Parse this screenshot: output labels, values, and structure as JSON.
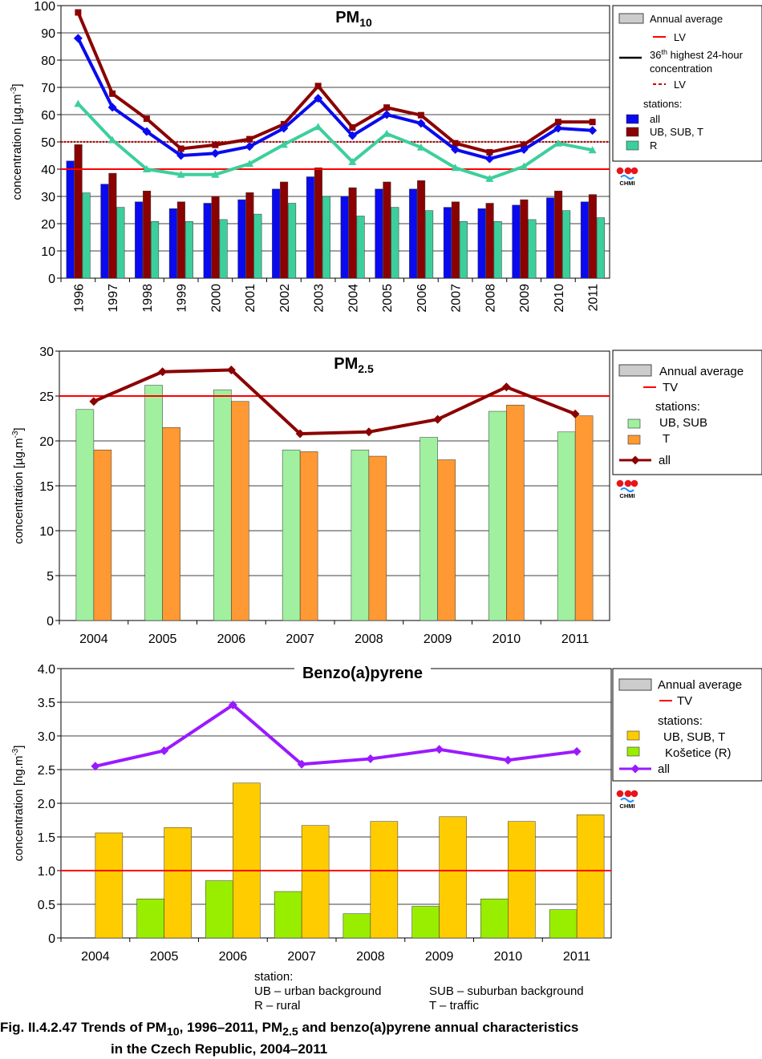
{
  "chart_data": [
    {
      "type": "bar",
      "title": "PM",
      "title_sub": "10",
      "ylabel": "concentration [µg.m",
      "ylabel_sup": "-3",
      "ylabel_end": "]",
      "ylim": [
        0,
        100
      ],
      "yticks": [
        "0",
        "10",
        "20",
        "30",
        "40",
        "50",
        "60",
        "70",
        "80",
        "90",
        "100"
      ],
      "categories": [
        "1996",
        "1997",
        "1998",
        "1999",
        "2000",
        "2001",
        "2002",
        "2003",
        "2004",
        "2005",
        "2006",
        "2007",
        "2008",
        "2009",
        "2010",
        "2011"
      ],
      "bar_series": [
        {
          "key": "all",
          "color": "#0a0af0",
          "values": [
            43,
            34.5,
            28,
            25.5,
            27.5,
            28.8,
            32.7,
            37.2,
            30,
            32.7,
            32.7,
            26,
            25.5,
            26.8,
            29.5,
            28
          ]
        },
        {
          "key": "ub",
          "color": "#8b0000",
          "values": [
            49,
            38.5,
            32,
            28,
            30,
            31.4,
            35.3,
            40.5,
            33.2,
            35.3,
            35.8,
            28,
            27.5,
            28.8,
            32,
            30.7
          ]
        },
        {
          "key": "r",
          "color": "#3ccf9c",
          "values": [
            31.3,
            26,
            20.8,
            20.8,
            21.5,
            23.5,
            27.5,
            30,
            22.8,
            26,
            24.8,
            20.8,
            20.8,
            21.5,
            24.8,
            22.2
          ]
        }
      ],
      "line_series": [
        {
          "key": "ub",
          "color": "#8b0000",
          "marker": "square",
          "values": [
            97.5,
            67.7,
            58.5,
            47.5,
            48.9,
            51,
            56.5,
            70.5,
            55.3,
            62.6,
            59.8,
            49.5,
            46.2,
            49,
            57.3,
            57.3
          ]
        },
        {
          "key": "all",
          "color": "#0a0af0",
          "marker": "diamond",
          "values": [
            88,
            62.7,
            53.8,
            45,
            45.8,
            48.3,
            55,
            66,
            52.3,
            60,
            56.8,
            47.2,
            43.8,
            47.2,
            55,
            54.2
          ]
        },
        {
          "key": "r",
          "color": "#3ccf9c",
          "marker": "triangle",
          "values": [
            64,
            50.7,
            40,
            38,
            38,
            42,
            49,
            55.5,
            42.7,
            53,
            48,
            40.5,
            36.5,
            41,
            49.5,
            47
          ]
        }
      ],
      "limit_lines": [
        {
          "value": 40,
          "color": "#ff0000",
          "style": "solid"
        },
        {
          "value": 50,
          "color": "#cc0000",
          "style": "dotted"
        }
      ],
      "grid": true,
      "legend": {
        "position": "right",
        "annual": "Annual average",
        "lv": "LV",
        "pct_pre": "36",
        "pct_sup": "th",
        "pct_post": " highest 24-hour",
        "pct_line2": "concentration",
        "lv2": "LV",
        "stations": "stations:",
        "all": "all",
        "ub": "UB, SUB, T",
        "r": "R"
      },
      "logo": "CHMI"
    },
    {
      "type": "bar",
      "title": "PM",
      "title_sub": "2.5",
      "ylabel": "concentration [µg.m",
      "ylabel_sup": "-3",
      "ylabel_end": "]",
      "ylim": [
        0,
        30
      ],
      "yticks": [
        "0",
        "5",
        "10",
        "15",
        "20",
        "25",
        "30"
      ],
      "categories": [
        "2004",
        "2005",
        "2006",
        "2007",
        "2008",
        "2009",
        "2010",
        "2011"
      ],
      "bar_series": [
        {
          "key": "ub",
          "color": "#a0f0a0",
          "values": [
            23.5,
            26.2,
            25.7,
            19,
            19,
            20.4,
            23.3,
            21
          ]
        },
        {
          "key": "t",
          "color": "#ff9933",
          "values": [
            19,
            21.5,
            24.4,
            18.8,
            18.3,
            17.9,
            24,
            22.8
          ]
        }
      ],
      "line_series": [
        {
          "key": "all",
          "color": "#8b0000",
          "marker": "diamond",
          "values": [
            24.4,
            27.7,
            27.9,
            20.8,
            21,
            22.4,
            26,
            23
          ]
        }
      ],
      "limit_lines": [
        {
          "value": 25,
          "color": "#ff0000",
          "style": "solid"
        }
      ],
      "grid": true,
      "legend": {
        "position": "right",
        "annual": "Annual average",
        "tv": "TV",
        "stations": "stations:",
        "ub": "UB, SUB",
        "t": "T",
        "all": "all"
      },
      "logo": "CHMI"
    },
    {
      "type": "bar",
      "title": "Benzo(a)pyrene",
      "ylabel": "concentration [ng.m",
      "ylabel_sup": "-3",
      "ylabel_end": "]",
      "ylim": [
        0,
        4
      ],
      "yticks": [
        "0",
        "0.5",
        "1.0",
        "1.5",
        "2.0",
        "2.5",
        "3.0",
        "3.5",
        "4.0"
      ],
      "categories": [
        "2004",
        "2005",
        "2006",
        "2007",
        "2008",
        "2009",
        "2010",
        "2011"
      ],
      "bar_series": [
        {
          "key": "r",
          "color": "#99ee00",
          "values": [
            null,
            0.58,
            0.85,
            0.69,
            0.36,
            0.47,
            0.58,
            0.42
          ]
        },
        {
          "key": "ub",
          "color": "#ffcc00",
          "values": [
            1.56,
            1.64,
            2.3,
            1.67,
            1.73,
            1.8,
            1.73,
            1.83
          ]
        }
      ],
      "line_series": [
        {
          "key": "all",
          "color": "#9a1aff",
          "marker": "diamond",
          "values": [
            2.55,
            2.78,
            3.46,
            2.58,
            2.66,
            2.8,
            2.64,
            2.77
          ]
        }
      ],
      "limit_lines": [
        {
          "value": 1.0,
          "color": "#ff0000",
          "style": "solid"
        }
      ],
      "grid": true,
      "legend": {
        "position": "right",
        "annual": "Annual average",
        "tv": "TV",
        "stations": "stations:",
        "ub": "UB, SUB, T",
        "r": "Košetice (R)",
        "all": "all"
      },
      "logo": "CHMI"
    }
  ],
  "station_notes": {
    "heading": "station:",
    "ub": "UB – urban background",
    "sub": "SUB – suburban background",
    "r": "R – rural",
    "t": "T – traffic"
  },
  "caption": {
    "line1_pre": "Fig. II.4.2.47  Trends of PM",
    "line1_sub1": "10",
    "line1_mid": ", 1996–2011, PM",
    "line1_sub2": "2.5",
    "line1_post": " and benzo(a)pyrene annual characteristics",
    "line2": "in the Czech Republic, 2004–2011"
  }
}
